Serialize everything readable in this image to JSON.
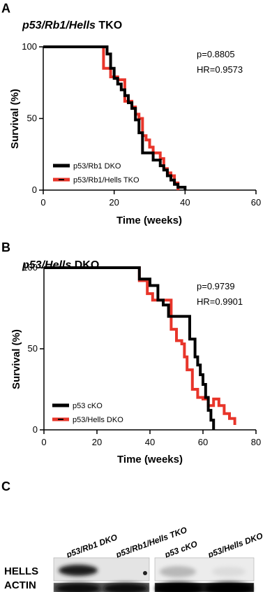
{
  "panels": {
    "a": {
      "letter": "A",
      "title_italic": "p53/Rb1/Hells",
      "title_rest": " TKO",
      "p_text": "p=0.8805",
      "hr_text": "HR=0.9573"
    },
    "b": {
      "letter": "B",
      "title_italic": "p53/Hells",
      "title_rest": " DKO",
      "p_text": "p=0.9739",
      "hr_text": "HR=0.9901"
    },
    "c": {
      "letter": "C",
      "lanes": [
        "p53/Rb1 DKO",
        "p53/Rb1/Hells TKO",
        "p53 cKO",
        "p53/Hells DKO"
      ],
      "rows": [
        "HELLS",
        "ACTIN"
      ]
    }
  },
  "chart_data": [
    {
      "type": "line",
      "subtype": "kaplan-meier step",
      "title": "p53/Rb1/Hells TKO",
      "xlabel": "Time (weeks)",
      "ylabel": "Survival (%)",
      "xlim": [
        0,
        60
      ],
      "ylim": [
        0,
        100
      ],
      "xticks": [
        0,
        20,
        40,
        60
      ],
      "yticks": [
        0,
        50,
        100
      ],
      "legend_position": "bottom-left",
      "series": [
        {
          "name": "p53/Rb1 DKO",
          "color": "#000000",
          "x": [
            0,
            14,
            18,
            19,
            20,
            21,
            22,
            23,
            24,
            25,
            26,
            27,
            28,
            30,
            31,
            33,
            34,
            35,
            36,
            37,
            38,
            39,
            40
          ],
          "y": [
            100,
            100,
            95,
            85,
            78,
            74,
            70,
            66,
            61,
            57,
            49,
            40,
            26,
            26,
            21,
            17,
            14,
            10,
            7,
            4,
            2,
            2,
            0
          ]
        },
        {
          "name": "p53/Rb1/Hells TKO",
          "color": "#e8352a",
          "x": [
            0,
            14,
            17,
            19,
            21,
            23,
            25,
            26,
            27,
            28,
            29,
            30,
            31,
            33,
            34,
            35,
            36,
            37,
            38
          ],
          "y": [
            100,
            100,
            85,
            79,
            77,
            62,
            58,
            53,
            50,
            38,
            35,
            30,
            26,
            22,
            15,
            12,
            10,
            5,
            0
          ]
        }
      ]
    },
    {
      "type": "line",
      "subtype": "kaplan-meier step",
      "title": "p53/Hells DKO",
      "xlabel": "Time (weeks)",
      "ylabel": "Survival (%)",
      "xlim": [
        0,
        80
      ],
      "ylim": [
        0,
        100
      ],
      "xticks": [
        0,
        20,
        40,
        60,
        80
      ],
      "yticks": [
        0,
        50,
        100
      ],
      "legend_position": "bottom-left",
      "series": [
        {
          "name": "p53 cKO",
          "color": "#000000",
          "x": [
            0,
            33,
            36,
            40,
            43,
            45,
            47,
            49,
            55,
            57,
            58,
            59,
            60,
            61,
            62,
            63,
            64
          ],
          "y": [
            100,
            100,
            93,
            89,
            80,
            77,
            70,
            70,
            56,
            45,
            40,
            34,
            28,
            20,
            12,
            6,
            0
          ]
        },
        {
          "name": "p53/Hells DKO",
          "color": "#e8352a",
          "x": [
            0,
            33,
            36,
            39,
            41,
            46,
            48,
            50,
            52,
            53,
            54,
            56,
            58,
            60,
            62,
            64,
            66,
            68,
            70,
            72
          ],
          "y": [
            100,
            100,
            92,
            84,
            80,
            80,
            62,
            55,
            53,
            45,
            37,
            25,
            20,
            19,
            15,
            19,
            15,
            10,
            7,
            3
          ]
        }
      ]
    }
  ]
}
